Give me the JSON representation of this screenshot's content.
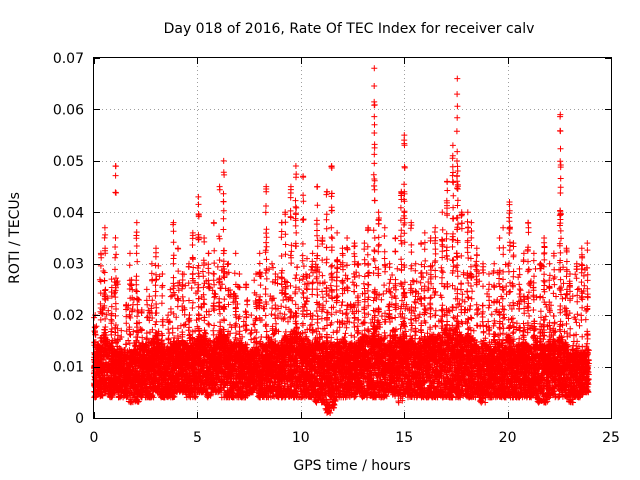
{
  "chart_data": {
    "type": "scatter",
    "title": "Day 018 of 2016, Rate Of TEC Index for receiver calv",
    "xlabel": "GPS time / hours",
    "ylabel": "ROTI / TECUs",
    "xlim": [
      0,
      25
    ],
    "ylim": [
      0,
      0.07
    ],
    "xticks": [
      0,
      5,
      10,
      15,
      20,
      25
    ],
    "xtick_labels": [
      "0",
      "5",
      "10",
      "15",
      "20",
      "25"
    ],
    "yticks": [
      0,
      0.01,
      0.02,
      0.03,
      0.04,
      0.05,
      0.06,
      0.07
    ],
    "ytick_labels": [
      "0",
      "0.01",
      "0.02",
      "0.03",
      "0.04",
      "0.05",
      "0.06",
      "0.07"
    ],
    "grid": true,
    "marker": "+",
    "marker_color": "#ff0000",
    "series": [
      {
        "name": "ROTI",
        "x": [
          0.05,
          0.3,
          0.55,
          0.8,
          1.05,
          1.3,
          1.55,
          1.8,
          2.05,
          2.3,
          2.55,
          2.8,
          3.05,
          3.3,
          3.55,
          3.8,
          4.05,
          4.3,
          4.55,
          4.8,
          5.05,
          5.3,
          5.55,
          5.8,
          6.05,
          6.3,
          6.55,
          6.8,
          7.05,
          7.3,
          7.55,
          7.8,
          8.05,
          8.3,
          8.55,
          8.8,
          9.05,
          9.3,
          9.55,
          9.8,
          10.05,
          10.3,
          10.55,
          10.8,
          11.05,
          11.3,
          11.55,
          11.8,
          12.05,
          12.3,
          12.55,
          12.8,
          13.05,
          13.3,
          13.55,
          13.8,
          14.05,
          14.3,
          14.55,
          14.8,
          15.05,
          15.3,
          15.55,
          15.8,
          16.05,
          16.3,
          16.55,
          16.8,
          17.05,
          17.3,
          17.55,
          17.8,
          18.05,
          18.3,
          18.55,
          18.8,
          19.05,
          19.3,
          19.55,
          19.8,
          20.05,
          20.3,
          20.55,
          20.8,
          21.05,
          21.3,
          21.55,
          21.8,
          22.05,
          22.3,
          22.55,
          22.8,
          23.05,
          23.3,
          23.55,
          23.8
        ],
        "min": [
          0.004,
          0.004,
          0.005,
          0.004,
          0.005,
          0.004,
          0.004,
          0.003,
          0.003,
          0.004,
          0.004,
          0.004,
          0.005,
          0.004,
          0.004,
          0.004,
          0.005,
          0.005,
          0.004,
          0.004,
          0.005,
          0.005,
          0.004,
          0.005,
          0.005,
          0.004,
          0.004,
          0.004,
          0.004,
          0.004,
          0.005,
          0.005,
          0.004,
          0.004,
          0.004,
          0.004,
          0.004,
          0.004,
          0.004,
          0.004,
          0.004,
          0.004,
          0.004,
          0.003,
          0.003,
          0.001,
          0.002,
          0.004,
          0.004,
          0.004,
          0.004,
          0.005,
          0.004,
          0.004,
          0.004,
          0.004,
          0.004,
          0.005,
          0.004,
          0.003,
          0.004,
          0.004,
          0.004,
          0.004,
          0.004,
          0.004,
          0.004,
          0.004,
          0.004,
          0.004,
          0.004,
          0.004,
          0.004,
          0.004,
          0.004,
          0.003,
          0.004,
          0.004,
          0.004,
          0.004,
          0.004,
          0.004,
          0.004,
          0.004,
          0.004,
          0.004,
          0.003,
          0.003,
          0.004,
          0.004,
          0.004,
          0.004,
          0.003,
          0.004,
          0.004,
          0.005
        ],
        "max": [
          0.02,
          0.032,
          0.037,
          0.027,
          0.049,
          0.017,
          0.022,
          0.032,
          0.038,
          0.021,
          0.025,
          0.03,
          0.033,
          0.028,
          0.02,
          0.038,
          0.033,
          0.028,
          0.03,
          0.036,
          0.043,
          0.035,
          0.032,
          0.038,
          0.045,
          0.05,
          0.03,
          0.032,
          0.028,
          0.026,
          0.02,
          0.028,
          0.032,
          0.045,
          0.03,
          0.028,
          0.038,
          0.04,
          0.045,
          0.049,
          0.047,
          0.031,
          0.032,
          0.045,
          0.035,
          0.044,
          0.049,
          0.036,
          0.033,
          0.035,
          0.034,
          0.03,
          0.034,
          0.037,
          0.068,
          0.04,
          0.037,
          0.03,
          0.035,
          0.044,
          0.055,
          0.038,
          0.03,
          0.034,
          0.036,
          0.035,
          0.037,
          0.04,
          0.046,
          0.053,
          0.066,
          0.04,
          0.04,
          0.038,
          0.033,
          0.03,
          0.028,
          0.03,
          0.035,
          0.037,
          0.042,
          0.034,
          0.029,
          0.032,
          0.038,
          0.032,
          0.03,
          0.035,
          0.03,
          0.032,
          0.059,
          0.033,
          0.028,
          0.03,
          0.033,
          0.034
        ],
        "typical": [
          0.0095,
          0.01,
          0.011,
          0.01,
          0.009,
          0.009,
          0.009,
          0.009,
          0.01,
          0.01,
          0.01,
          0.01,
          0.011,
          0.01,
          0.009,
          0.01,
          0.01,
          0.01,
          0.01,
          0.01,
          0.011,
          0.011,
          0.01,
          0.01,
          0.011,
          0.011,
          0.01,
          0.01,
          0.01,
          0.01,
          0.009,
          0.009,
          0.01,
          0.01,
          0.01,
          0.01,
          0.01,
          0.011,
          0.011,
          0.012,
          0.011,
          0.01,
          0.01,
          0.011,
          0.01,
          0.01,
          0.01,
          0.01,
          0.01,
          0.01,
          0.01,
          0.01,
          0.011,
          0.011,
          0.012,
          0.011,
          0.01,
          0.01,
          0.011,
          0.011,
          0.011,
          0.011,
          0.01,
          0.01,
          0.011,
          0.011,
          0.011,
          0.011,
          0.012,
          0.012,
          0.012,
          0.011,
          0.011,
          0.011,
          0.01,
          0.01,
          0.01,
          0.01,
          0.01,
          0.01,
          0.011,
          0.01,
          0.01,
          0.01,
          0.01,
          0.01,
          0.01,
          0.01,
          0.01,
          0.01,
          0.011,
          0.01,
          0.009,
          0.009,
          0.009,
          0.009
        ]
      }
    ]
  }
}
